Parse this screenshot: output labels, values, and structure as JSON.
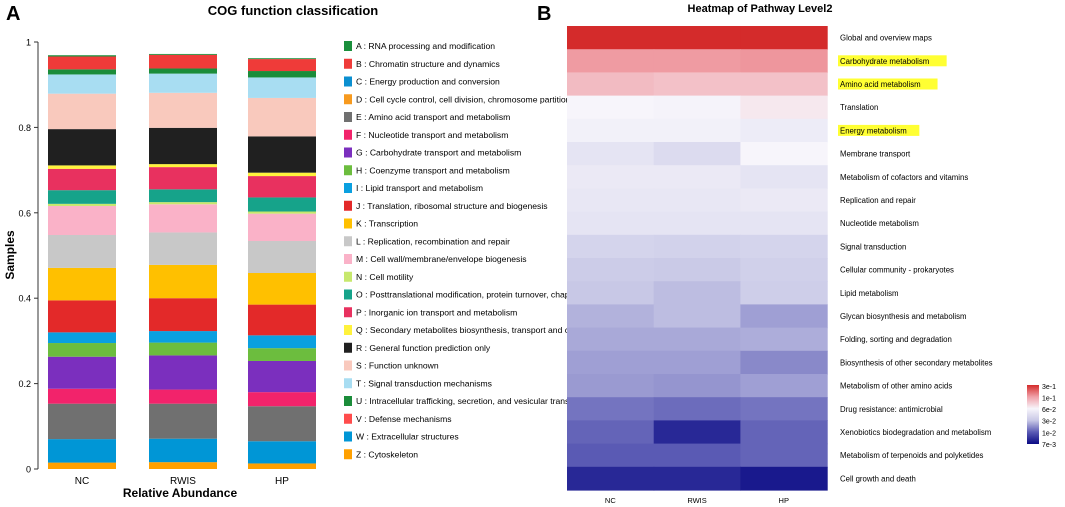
{
  "panel_a": {
    "letter": "A",
    "chart_data": {
      "type": "bar",
      "stacked": true,
      "title": "COG function classification",
      "xlabel": "Relative Abundance",
      "ylabel": "Samples",
      "ylim": [
        0,
        1
      ],
      "yticks": [
        "0",
        "0.2",
        "0.4",
        "0.6",
        "0.8",
        "1"
      ],
      "categories": [
        "NC",
        "RWIS",
        "HP"
      ],
      "series": [
        {
          "code": "Z",
          "name": "Z : Cytoskeleton",
          "color": "#ffa000",
          "values": [
            0.015,
            0.016,
            0.013
          ]
        },
        {
          "code": "W",
          "name": "W : Extracellular structures",
          "color": "#0096d6",
          "values": [
            0.055,
            0.055,
            0.052
          ]
        },
        {
          "code": "V",
          "name": "V : Defense mechanisms",
          "color": "#ff4c4c",
          "values": [
            0.002,
            0.002,
            0.002
          ]
        },
        {
          "code": "U",
          "name": "U : Intracellular trafficking, secretion, and vesicular transport",
          "color": "#1b8c3a",
          "values": [
            0.002,
            0.002,
            0.002
          ]
        },
        {
          "code": "T",
          "name": "T : Signal transduction mechanisms",
          "color": "#a8ddf2",
          "values": [
            0.002,
            0.002,
            0.002
          ]
        },
        {
          "code": "S",
          "name": "S : Function unknown",
          "color": "#f9c9bd",
          "values": [
            0.002,
            0.002,
            0.002
          ]
        },
        {
          "code": "R",
          "name": "R : General function prediction only",
          "color": "#202020",
          "values": [
            0.002,
            0.002,
            0.002
          ]
        },
        {
          "code": "Q",
          "name": "Q : Secondary metabolites biosynthesis, transport and catabolism",
          "color": "#fff23c",
          "values": [
            0.002,
            0.002,
            0.002
          ]
        },
        {
          "code": "P",
          "name": "P : Inorganic ion transport and metabolism",
          "color": "#e8315f",
          "values": [
            0.002,
            0.002,
            0.002
          ]
        },
        {
          "code": "O",
          "name": "O : Posttranslational modification, protein turnover, chaperones",
          "color": "#16a38a",
          "values": [
            0.002,
            0.002,
            0.002
          ]
        },
        {
          "code": "N",
          "name": "N : Cell motility",
          "color": "#c7e86d",
          "values": [
            0.002,
            0.002,
            0.002
          ]
        },
        {
          "code": "M",
          "name": "M : Cell wall/membrane/envelope biogenesis",
          "color": "#fab2c8",
          "values": [
            0.002,
            0.002,
            0.002
          ]
        },
        {
          "code": "L",
          "name": "L : Replication, recombination and repair",
          "color": "#c8c8c8",
          "values": [
            0.002,
            0.002,
            0.002
          ]
        },
        {
          "code": "K",
          "name": "K : Transcription",
          "color": "#ffc000",
          "values": [
            0.002,
            0.002,
            0.002
          ]
        },
        {
          "code": "J",
          "name": "J : Translation, ribosomal structure and biogenesis",
          "color": "#e32929",
          "values": [
            0.002,
            0.002,
            0.002
          ]
        },
        {
          "code": "I",
          "name": "I : Lipid transport and metabolism",
          "color": "#0aa0e0",
          "values": [
            0.002,
            0.002,
            0.002
          ]
        },
        {
          "code": "H",
          "name": "H : Coenzyme transport and metabolism",
          "color": "#6cbd3e",
          "values": [
            0.002,
            0.002,
            0.002
          ]
        },
        {
          "code": "G",
          "name": "G : Carbohydrate transport and metabolism",
          "color": "#7b2fbe",
          "values": [
            0.002,
            0.002,
            0.002
          ]
        },
        {
          "code": "F",
          "name": "F : Nucleotide transport and metabolism",
          "color": "#f2236b",
          "values": [
            0.002,
            0.002,
            0.002
          ]
        },
        {
          "code": "E",
          "name": "E : Amino acid transport and metabolism",
          "color": "#707070",
          "values": [
            0.002,
            0.002,
            0.002
          ]
        },
        {
          "code": "D",
          "name": "D : Cell cycle control, cell division, chromosome partitioning",
          "color": "#f79a1e",
          "values": [
            0.002,
            0.002,
            0.002
          ]
        },
        {
          "code": "C",
          "name": "C : Energy production and conversion",
          "color": "#0b8fd0",
          "values": [
            0.002,
            0.002,
            0.002
          ]
        },
        {
          "code": "B",
          "name": "B : Chromatin structure and dynamics",
          "color": "#ef3b39",
          "values": [
            0.002,
            0.002,
            0.002
          ]
        },
        {
          "code": "A",
          "name": "A : RNA processing and modification",
          "color": "#1a8f3c",
          "values": [
            0.002,
            0.002,
            0.002
          ]
        }
      ],
      "segments": [
        {
          "color": "#ffa000",
          "values": [
            0.015,
            0.016,
            0.013
          ]
        },
        {
          "color": "#0096d6",
          "values": [
            0.055,
            0.055,
            0.052
          ]
        },
        {
          "color": "#707070",
          "values": [
            0.083,
            0.082,
            0.082
          ]
        },
        {
          "color": "#f2236b",
          "values": [
            0.035,
            0.033,
            0.033
          ]
        },
        {
          "color": "#7b2fbe",
          "values": [
            0.075,
            0.08,
            0.073
          ]
        },
        {
          "color": "#6cbd3e",
          "values": [
            0.032,
            0.03,
            0.03
          ]
        },
        {
          "color": "#0aa0e0",
          "values": [
            0.025,
            0.027,
            0.03
          ]
        },
        {
          "color": "#e32929",
          "values": [
            0.075,
            0.077,
            0.072
          ]
        },
        {
          "color": "#ffc000",
          "values": [
            0.076,
            0.078,
            0.074
          ]
        },
        {
          "color": "#c8c8c8",
          "values": [
            0.077,
            0.076,
            0.075
          ]
        },
        {
          "color": "#fab2c8",
          "values": [
            0.068,
            0.066,
            0.064
          ]
        },
        {
          "color": "#c7e86d",
          "values": [
            0.005,
            0.005,
            0.005
          ]
        },
        {
          "color": "#16a38a",
          "values": [
            0.032,
            0.03,
            0.033
          ]
        },
        {
          "color": "#e8315f",
          "values": [
            0.05,
            0.052,
            0.05
          ]
        },
        {
          "color": "#fff23c",
          "values": [
            0.008,
            0.007,
            0.008
          ]
        },
        {
          "color": "#202020",
          "values": [
            0.085,
            0.085,
            0.085
          ]
        },
        {
          "color": "#f9c9bd",
          "values": [
            0.083,
            0.082,
            0.09
          ]
        },
        {
          "color": "#a8ddf2",
          "values": [
            0.045,
            0.045,
            0.048
          ]
        },
        {
          "color": "#1b8c3a",
          "values": [
            0.012,
            0.012,
            0.015
          ]
        },
        {
          "color": "#ef3b39",
          "values": [
            0.03,
            0.032,
            0.028
          ]
        },
        {
          "color": "#1a8f3c",
          "values": [
            0.003,
            0.002,
            0.002
          ]
        }
      ],
      "legend_placement": "right",
      "legend_order": [
        "A",
        "B",
        "C",
        "D",
        "E",
        "F",
        "G",
        "H",
        "I",
        "J",
        "K",
        "L",
        "M",
        "N",
        "O",
        "P",
        "Q",
        "R",
        "S",
        "T",
        "U",
        "V",
        "W",
        "Z"
      ]
    }
  },
  "panel_b": {
    "letter": "B",
    "chart_data": {
      "type": "heatmap",
      "title": "Heatmap of Pathway Level2",
      "columns": [
        "NC",
        "RWIS",
        "HP"
      ],
      "rows": [
        {
          "label": "Global and overview maps",
          "highlight": false,
          "values": [
            0.3,
            0.3,
            0.3
          ]
        },
        {
          "label": "Carbohydrate metabolism",
          "highlight": true,
          "values": [
            0.105,
            0.105,
            0.11
          ]
        },
        {
          "label": "Amino acid metabolism",
          "highlight": true,
          "values": [
            0.085,
            0.082,
            0.082
          ]
        },
        {
          "label": "Translation",
          "highlight": false,
          "values": [
            0.06,
            0.058,
            0.065
          ]
        },
        {
          "label": "Energy metabolism",
          "highlight": true,
          "values": [
            0.056,
            0.056,
            0.052
          ]
        },
        {
          "label": "Membrane transport",
          "highlight": false,
          "values": [
            0.046,
            0.04,
            0.06
          ]
        },
        {
          "label": "Metabolism of cofactors and vitamins",
          "highlight": false,
          "values": [
            0.05,
            0.05,
            0.046
          ]
        },
        {
          "label": "Replication and repair",
          "highlight": false,
          "values": [
            0.048,
            0.048,
            0.05
          ]
        },
        {
          "label": "Nucleotide metabolism",
          "highlight": false,
          "values": [
            0.046,
            0.046,
            0.046
          ]
        },
        {
          "label": "Signal transduction",
          "highlight": false,
          "values": [
            0.036,
            0.035,
            0.036
          ]
        },
        {
          "label": "Cellular community - prokaryotes",
          "highlight": false,
          "values": [
            0.032,
            0.031,
            0.034
          ]
        },
        {
          "label": "Lipid metabolism",
          "highlight": false,
          "values": [
            0.03,
            0.027,
            0.033
          ]
        },
        {
          "label": "Glycan biosynthesis and metabolism",
          "highlight": false,
          "values": [
            0.024,
            0.027,
            0.02
          ]
        },
        {
          "label": "Folding, sorting and degradation",
          "highlight": false,
          "values": [
            0.022,
            0.022,
            0.023
          ]
        },
        {
          "label": "Biosynthesis of other secondary metabolites",
          "highlight": false,
          "values": [
            0.02,
            0.02,
            0.016
          ]
        },
        {
          "label": "Metabolism of other amino acids",
          "highlight": false,
          "values": [
            0.019,
            0.018,
            0.02
          ]
        },
        {
          "label": "Drug resistance: antimicrobial",
          "highlight": false,
          "values": [
            0.013,
            0.012,
            0.013
          ]
        },
        {
          "label": "Xenobiotics biodegradation and metabolism",
          "highlight": false,
          "values": [
            0.011,
            0.008,
            0.011
          ]
        },
        {
          "label": "Metabolism of terpenoids and polyketides",
          "highlight": false,
          "values": [
            0.01,
            0.01,
            0.011
          ]
        },
        {
          "label": "Cell growth and death",
          "highlight": false,
          "values": [
            0.008,
            0.008,
            0.0075
          ]
        }
      ],
      "colorbar": {
        "labels": [
          "3e-1",
          "1e-1",
          "6e-2",
          "3e-2",
          "1e-2",
          "7e-3"
        ],
        "colors": [
          "#d42b2b",
          "#f0a0a8",
          "#f7f5fb",
          "#c8c8e6",
          "#5a5ab4",
          "#0a0a84"
        ]
      }
    }
  }
}
